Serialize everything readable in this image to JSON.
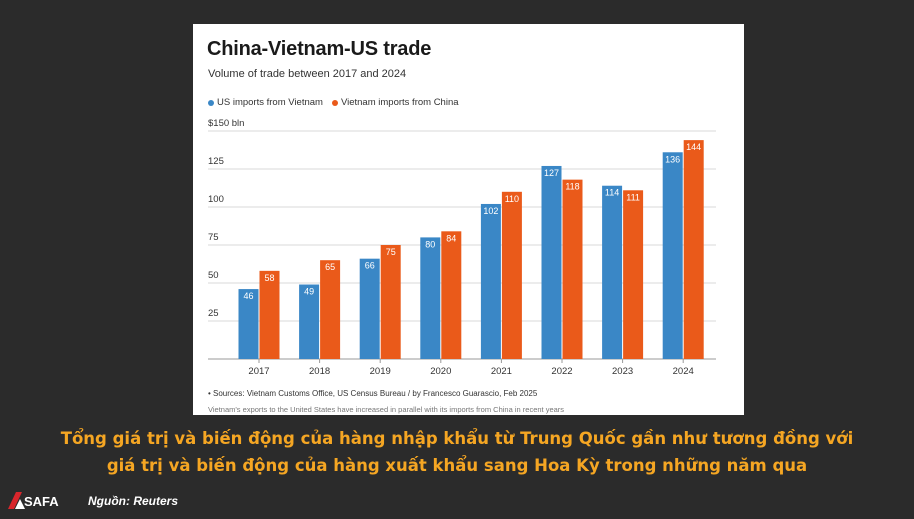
{
  "chart_data": {
    "type": "bar",
    "title": "China-Vietnam-US trade",
    "subtitle": "Volume of trade between 2017 and 2024",
    "categories": [
      "2017",
      "2018",
      "2019",
      "2020",
      "2021",
      "2022",
      "2023",
      "2024"
    ],
    "series": [
      {
        "name": "US imports from Vietnam",
        "values": [
          46,
          49,
          66,
          80,
          102,
          127,
          114,
          136
        ],
        "color": "#3a87c6"
      },
      {
        "name": "Vietnam imports from China",
        "values": [
          58,
          65,
          75,
          84,
          110,
          118,
          111,
          144
        ],
        "color": "#ea5a1a"
      }
    ],
    "ylim": [
      0,
      150
    ],
    "yticks": [
      "25",
      "50",
      "75",
      "100",
      "125",
      "$150 bln"
    ],
    "ytick_values": [
      25,
      50,
      75,
      100,
      125,
      150
    ],
    "grid": true,
    "legend": "top-left",
    "data_labels": true,
    "footnote_source": "• Sources: Vietnam Customs Office, US Census Bureau / by Francesco Guarascio, Feb 2025",
    "footnote_note": "Vietnam's exports to the United States have increased in parallel with its imports from China in recent years"
  },
  "caption": {
    "line1": "Tổng giá trị và biến động của hàng nhập khẩu từ Trung Quốc gần như tương đồng với",
    "line2": "giá trị và biến động của hàng xuất khẩu sang Hoa Kỳ trong những năm qua"
  },
  "logo_text": "SAFA",
  "source_label": "Nguồn: Reuters",
  "colors": {
    "background": "#2b2b2b",
    "caption": "#f5a623",
    "grid": "#d9d9d9"
  }
}
